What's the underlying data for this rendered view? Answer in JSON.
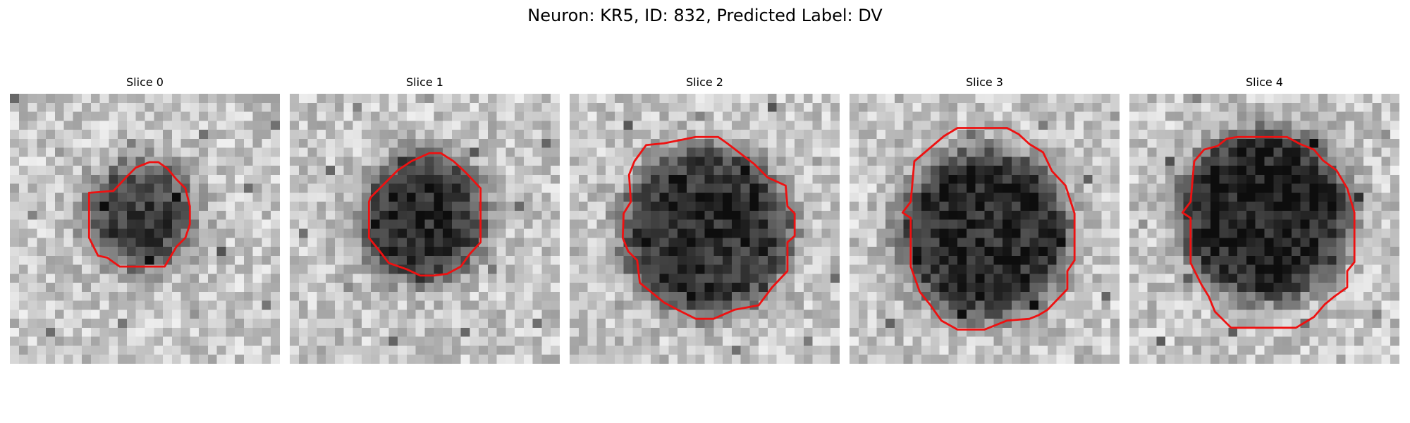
{
  "suptitle": "Neuron: KR5, ID: 832, Predicted Label: DV",
  "panels": [
    {
      "title": "Slice 0"
    },
    {
      "title": "Slice 1"
    },
    {
      "title": "Slice 2"
    },
    {
      "title": "Slice 3"
    },
    {
      "title": "Slice 4"
    }
  ],
  "colors": {
    "contour": "#ee1111",
    "background": "#ffffff"
  }
}
